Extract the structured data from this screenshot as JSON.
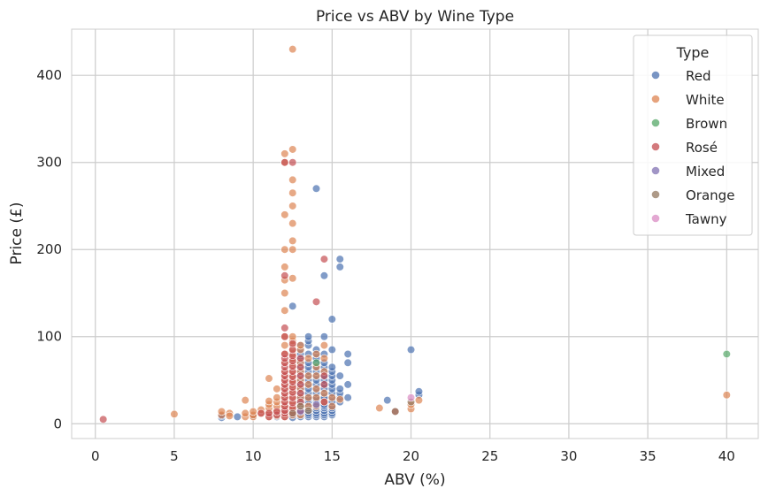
{
  "chart_data": {
    "type": "scatter",
    "title": "Price vs ABV by Wine Type",
    "xlabel": "ABV (%)",
    "ylabel": "Price (£)",
    "xlim": [
      -1.5,
      42
    ],
    "ylim": [
      -17,
      453
    ],
    "xticks": [
      "0",
      "5",
      "10",
      "15",
      "20",
      "25",
      "30",
      "35",
      "40"
    ],
    "yticks": [
      "0",
      "100",
      "200",
      "300",
      "400"
    ],
    "grid": true,
    "legend": {
      "title": "Type",
      "placement": "top-right"
    },
    "colors": {
      "Red": "#4c72b0",
      "White": "#dd8452",
      "Brown": "#55a868",
      "Rosé": "#c44e52",
      "Mixed": "#8172b3",
      "Orange": "#937860",
      "Tawny": "#da8bc3"
    },
    "series": [
      {
        "name": "Red",
        "points": [
          [
            8,
            7
          ],
          [
            8,
            9
          ],
          [
            9,
            8
          ],
          [
            10,
            9
          ],
          [
            11,
            10
          ],
          [
            11.5,
            8
          ],
          [
            12,
            9
          ],
          [
            12.5,
            7
          ],
          [
            12.5,
            10
          ],
          [
            12.5,
            135
          ],
          [
            13,
            8
          ],
          [
            13,
            10
          ],
          [
            13,
            12
          ],
          [
            13,
            14
          ],
          [
            13,
            16
          ],
          [
            13,
            18
          ],
          [
            13,
            20
          ],
          [
            13,
            22
          ],
          [
            13,
            25
          ],
          [
            13,
            28
          ],
          [
            13,
            30
          ],
          [
            13,
            35
          ],
          [
            13,
            40
          ],
          [
            13,
            45
          ],
          [
            13,
            50
          ],
          [
            13,
            55
          ],
          [
            13,
            60
          ],
          [
            13,
            65
          ],
          [
            13,
            70
          ],
          [
            13,
            75
          ],
          [
            13,
            80
          ],
          [
            13,
            85
          ],
          [
            13,
            90
          ],
          [
            13.5,
            8
          ],
          [
            13.5,
            10
          ],
          [
            13.5,
            12
          ],
          [
            13.5,
            15
          ],
          [
            13.5,
            18
          ],
          [
            13.5,
            20
          ],
          [
            13.5,
            22
          ],
          [
            13.5,
            25
          ],
          [
            13.5,
            28
          ],
          [
            13.5,
            30
          ],
          [
            13.5,
            35
          ],
          [
            13.5,
            40
          ],
          [
            13.5,
            45
          ],
          [
            13.5,
            50
          ],
          [
            13.5,
            55
          ],
          [
            13.5,
            60
          ],
          [
            13.5,
            65
          ],
          [
            13.5,
            70
          ],
          [
            13.5,
            80
          ],
          [
            13.5,
            90
          ],
          [
            13.5,
            95
          ],
          [
            13.5,
            100
          ],
          [
            14,
            8
          ],
          [
            14,
            10
          ],
          [
            14,
            12
          ],
          [
            14,
            15
          ],
          [
            14,
            18
          ],
          [
            14,
            20
          ],
          [
            14,
            22
          ],
          [
            14,
            25
          ],
          [
            14,
            28
          ],
          [
            14,
            30
          ],
          [
            14,
            35
          ],
          [
            14,
            40
          ],
          [
            14,
            45
          ],
          [
            14,
            50
          ],
          [
            14,
            55
          ],
          [
            14,
            60
          ],
          [
            14,
            65
          ],
          [
            14,
            70
          ],
          [
            14,
            75
          ],
          [
            14,
            80
          ],
          [
            14,
            85
          ],
          [
            14,
            270
          ],
          [
            14.5,
            8
          ],
          [
            14.5,
            10
          ],
          [
            14.5,
            12
          ],
          [
            14.5,
            15
          ],
          [
            14.5,
            18
          ],
          [
            14.5,
            20
          ],
          [
            14.5,
            22
          ],
          [
            14.5,
            25
          ],
          [
            14.5,
            28
          ],
          [
            14.5,
            30
          ],
          [
            14.5,
            35
          ],
          [
            14.5,
            40
          ],
          [
            14.5,
            45
          ],
          [
            14.5,
            50
          ],
          [
            14.5,
            55
          ],
          [
            14.5,
            60
          ],
          [
            14.5,
            65
          ],
          [
            14.5,
            70
          ],
          [
            14.5,
            80
          ],
          [
            14.5,
            100
          ],
          [
            14.5,
            170
          ],
          [
            15,
            10
          ],
          [
            15,
            12
          ],
          [
            15,
            15
          ],
          [
            15,
            18
          ],
          [
            15,
            20
          ],
          [
            15,
            25
          ],
          [
            15,
            30
          ],
          [
            15,
            35
          ],
          [
            15,
            40
          ],
          [
            15,
            45
          ],
          [
            15,
            50
          ],
          [
            15,
            55
          ],
          [
            15,
            60
          ],
          [
            15,
            65
          ],
          [
            15,
            85
          ],
          [
            15,
            120
          ],
          [
            15.5,
            25
          ],
          [
            15.5,
            30
          ],
          [
            15.5,
            35
          ],
          [
            15.5,
            40
          ],
          [
            15.5,
            55
          ],
          [
            15.5,
            180
          ],
          [
            15.5,
            189
          ],
          [
            16,
            30
          ],
          [
            16,
            45
          ],
          [
            16,
            70
          ],
          [
            16,
            80
          ],
          [
            18.5,
            27
          ],
          [
            20,
            85
          ],
          [
            20.5,
            33
          ],
          [
            20.5,
            37
          ]
        ]
      },
      {
        "name": "White",
        "points": [
          [
            5,
            11
          ],
          [
            8,
            10
          ],
          [
            8,
            14
          ],
          [
            8.5,
            12
          ],
          [
            8.5,
            9
          ],
          [
            9.5,
            8
          ],
          [
            9.5,
            12
          ],
          [
            9.5,
            27
          ],
          [
            10,
            8
          ],
          [
            10,
            10
          ],
          [
            10,
            14
          ],
          [
            10.5,
            12
          ],
          [
            10.5,
            16
          ],
          [
            11,
            8
          ],
          [
            11,
            10
          ],
          [
            11,
            14
          ],
          [
            11,
            18
          ],
          [
            11,
            22
          ],
          [
            11,
            26
          ],
          [
            11,
            52
          ],
          [
            11.5,
            9
          ],
          [
            11.5,
            12
          ],
          [
            11.5,
            16
          ],
          [
            11.5,
            20
          ],
          [
            11.5,
            25
          ],
          [
            11.5,
            30
          ],
          [
            11.5,
            40
          ],
          [
            12,
            8
          ],
          [
            12,
            10
          ],
          [
            12,
            12
          ],
          [
            12,
            15
          ],
          [
            12,
            18
          ],
          [
            12,
            20
          ],
          [
            12,
            25
          ],
          [
            12,
            30
          ],
          [
            12,
            35
          ],
          [
            12,
            40
          ],
          [
            12,
            45
          ],
          [
            12,
            50
          ],
          [
            12,
            55
          ],
          [
            12,
            60
          ],
          [
            12,
            70
          ],
          [
            12,
            80
          ],
          [
            12,
            90
          ],
          [
            12,
            100
          ],
          [
            12,
            130
          ],
          [
            12,
            150
          ],
          [
            12,
            165
          ],
          [
            12,
            180
          ],
          [
            12,
            200
          ],
          [
            12,
            240
          ],
          [
            12,
            300
          ],
          [
            12,
            310
          ],
          [
            12.5,
            10
          ],
          [
            12.5,
            15
          ],
          [
            12.5,
            20
          ],
          [
            12.5,
            25
          ],
          [
            12.5,
            30
          ],
          [
            12.5,
            35
          ],
          [
            12.5,
            40
          ],
          [
            12.5,
            45
          ],
          [
            12.5,
            50
          ],
          [
            12.5,
            55
          ],
          [
            12.5,
            60
          ],
          [
            12.5,
            65
          ],
          [
            12.5,
            70
          ],
          [
            12.5,
            75
          ],
          [
            12.5,
            80
          ],
          [
            12.5,
            85
          ],
          [
            12.5,
            90
          ],
          [
            12.5,
            95
          ],
          [
            12.5,
            100
          ],
          [
            12.5,
            167
          ],
          [
            12.5,
            200
          ],
          [
            12.5,
            210
          ],
          [
            12.5,
            230
          ],
          [
            12.5,
            250
          ],
          [
            12.5,
            265
          ],
          [
            12.5,
            280
          ],
          [
            12.5,
            315
          ],
          [
            12.5,
            430
          ],
          [
            13,
            10
          ],
          [
            13,
            15
          ],
          [
            13,
            20
          ],
          [
            13,
            30
          ],
          [
            13,
            40
          ],
          [
            13,
            50
          ],
          [
            13,
            60
          ],
          [
            13,
            70
          ],
          [
            13,
            85
          ],
          [
            13,
            90
          ],
          [
            13.5,
            20
          ],
          [
            13.5,
            30
          ],
          [
            13.5,
            45
          ],
          [
            13.5,
            55
          ],
          [
            13.5,
            75
          ],
          [
            14,
            20
          ],
          [
            14,
            30
          ],
          [
            14,
            40
          ],
          [
            14,
            55
          ],
          [
            14,
            65
          ],
          [
            14,
            80
          ],
          [
            14.5,
            25
          ],
          [
            14.5,
            35
          ],
          [
            14.5,
            60
          ],
          [
            14.5,
            75
          ],
          [
            14.5,
            90
          ],
          [
            15,
            20
          ],
          [
            15,
            30
          ],
          [
            15.5,
            28
          ],
          [
            18,
            18
          ],
          [
            20,
            17
          ],
          [
            20,
            22
          ],
          [
            20.5,
            27
          ],
          [
            40,
            33
          ]
        ]
      },
      {
        "name": "Brown",
        "points": [
          [
            14,
            70
          ],
          [
            40,
            80
          ]
        ]
      },
      {
        "name": "Rosé",
        "points": [
          [
            0.5,
            5
          ],
          [
            10.5,
            12
          ],
          [
            11,
            8
          ],
          [
            11,
            12
          ],
          [
            11.5,
            10
          ],
          [
            11.5,
            14
          ],
          [
            12,
            8
          ],
          [
            12,
            12
          ],
          [
            12,
            15
          ],
          [
            12,
            20
          ],
          [
            12,
            25
          ],
          [
            12,
            30
          ],
          [
            12,
            35
          ],
          [
            12,
            40
          ],
          [
            12,
            45
          ],
          [
            12,
            50
          ],
          [
            12,
            55
          ],
          [
            12,
            60
          ],
          [
            12,
            65
          ],
          [
            12,
            70
          ],
          [
            12,
            75
          ],
          [
            12,
            80
          ],
          [
            12,
            100
          ],
          [
            12,
            110
          ],
          [
            12,
            170
          ],
          [
            12,
            300
          ],
          [
            12.5,
            12
          ],
          [
            12.5,
            18
          ],
          [
            12.5,
            24
          ],
          [
            12.5,
            30
          ],
          [
            12.5,
            36
          ],
          [
            12.5,
            42
          ],
          [
            12.5,
            48
          ],
          [
            12.5,
            54
          ],
          [
            12.5,
            60
          ],
          [
            12.5,
            66
          ],
          [
            12.5,
            72
          ],
          [
            12.5,
            78
          ],
          [
            12.5,
            85
          ],
          [
            12.5,
            92
          ],
          [
            12.5,
            300
          ],
          [
            13,
            15
          ],
          [
            13,
            25
          ],
          [
            13,
            35
          ],
          [
            13,
            45
          ],
          [
            13,
            55
          ],
          [
            13,
            65
          ],
          [
            13,
            75
          ],
          [
            14,
            140
          ],
          [
            14.5,
            25
          ],
          [
            14.5,
            45
          ],
          [
            14.5,
            55
          ],
          [
            14.5,
            189
          ],
          [
            19,
            14
          ]
        ]
      },
      {
        "name": "Mixed",
        "points": [
          [
            13,
            14
          ],
          [
            14,
            22
          ]
        ]
      },
      {
        "name": "Orange",
        "points": [
          [
            12.5,
            12
          ],
          [
            13,
            20
          ],
          [
            13.5,
            15
          ],
          [
            19,
            14
          ],
          [
            20,
            25
          ]
        ]
      },
      {
        "name": "Tawny",
        "points": [
          [
            20,
            30
          ]
        ]
      }
    ]
  }
}
